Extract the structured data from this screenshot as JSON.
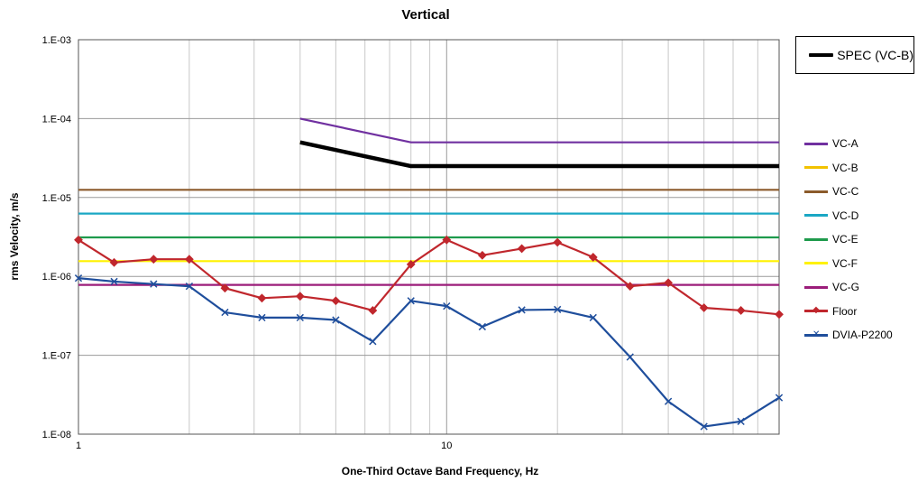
{
  "chart_data": {
    "type": "line",
    "title": "Vertical",
    "xlabel": "One-Third Octave Band Frequency, Hz",
    "ylabel": "rms Velocity, m/s",
    "x_scale": "log",
    "y_scale": "log",
    "xlim": [
      1,
      80
    ],
    "ylim": [
      1e-08,
      0.001
    ],
    "x_tick_labels": [
      {
        "value": 1,
        "label": "1"
      },
      {
        "value": 10,
        "label": "10"
      }
    ],
    "y_tick_labels": [
      {
        "value": 1e-08,
        "label": "1.E-08"
      },
      {
        "value": 1e-07,
        "label": "1.E-07"
      },
      {
        "value": 1e-06,
        "label": "1.E-06"
      },
      {
        "value": 1e-05,
        "label": "1.E-05"
      },
      {
        "value": 0.0001,
        "label": "1.E-04"
      },
      {
        "value": 0.001,
        "label": "1.E-03"
      }
    ],
    "grid": true,
    "spec": {
      "name": "SPEC (VC-B)",
      "color": "#000000",
      "x": [
        4,
        8,
        80
      ],
      "values": [
        5e-05,
        2.5e-05,
        2.5e-05
      ]
    },
    "series": [
      {
        "name": "VC-A",
        "color": "#7030A0",
        "marker": "none",
        "x": [
          4,
          8,
          80
        ],
        "values": [
          0.0001,
          5e-05,
          5e-05
        ]
      },
      {
        "name": "VC-B",
        "color": "#F2C200",
        "marker": "none",
        "x": [
          4,
          8,
          80
        ],
        "values": [
          5e-05,
          2.5e-05,
          2.5e-05
        ]
      },
      {
        "name": "VC-C",
        "color": "#8B5A2B",
        "marker": "none",
        "x": [
          1,
          80
        ],
        "values": [
          1.25e-05,
          1.25e-05
        ]
      },
      {
        "name": "VC-D",
        "color": "#1AA7C4",
        "marker": "none",
        "x": [
          1,
          80
        ],
        "values": [
          6.25e-06,
          6.25e-06
        ]
      },
      {
        "name": "VC-E",
        "color": "#1E9A4C",
        "marker": "none",
        "x": [
          1,
          80
        ],
        "values": [
          3.12e-06,
          3.12e-06
        ]
      },
      {
        "name": "VC-F",
        "color": "#FFF200",
        "marker": "none",
        "x": [
          1,
          80
        ],
        "values": [
          1.56e-06,
          1.56e-06
        ]
      },
      {
        "name": "VC-G",
        "color": "#9B1D7A",
        "marker": "none",
        "x": [
          1,
          80
        ],
        "values": [
          7.8e-07,
          7.8e-07
        ]
      },
      {
        "name": "Floor",
        "color": "#C0272D",
        "marker": "diamond",
        "x": [
          1,
          1.25,
          1.6,
          2,
          2.5,
          3.15,
          4,
          5,
          6.3,
          8,
          10,
          12.5,
          16,
          20,
          25,
          31.5,
          40,
          50,
          63,
          80
        ],
        "values": [
          2.9e-06,
          1.5e-06,
          1.65e-06,
          1.65e-06,
          7.1e-07,
          5.3e-07,
          5.6e-07,
          4.9e-07,
          3.7e-07,
          1.42e-06,
          2.9e-06,
          1.85e-06,
          2.25e-06,
          2.7e-06,
          1.75e-06,
          7.5e-07,
          8.3e-07,
          4e-07,
          3.7e-07,
          3.3e-07
        ]
      },
      {
        "name": "DVIA-P2200",
        "color": "#1F4E9C",
        "marker": "x",
        "x": [
          1,
          1.25,
          1.6,
          2,
          2.5,
          3.15,
          4,
          5,
          6.3,
          8,
          10,
          12.5,
          16,
          20,
          25,
          31.5,
          40,
          50,
          63,
          80
        ],
        "values": [
          9.5e-07,
          8.6e-07,
          8e-07,
          7.5e-07,
          3.5e-07,
          3e-07,
          3e-07,
          2.8e-07,
          1.5e-07,
          4.9e-07,
          4.2e-07,
          2.3e-07,
          3.75e-07,
          3.8e-07,
          3e-07,
          9.5e-08,
          2.6e-08,
          1.25e-08,
          1.45e-08,
          2.9e-08
        ]
      }
    ]
  }
}
